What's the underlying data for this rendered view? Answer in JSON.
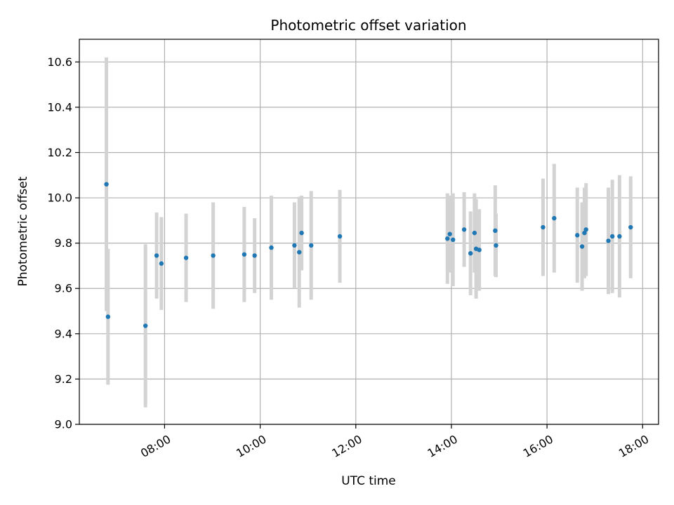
{
  "chart_data": {
    "type": "scatter",
    "title": "Photometric offset variation",
    "xlabel": "UTC time",
    "ylabel": "Photometric offset",
    "xlim": [
      "06:13",
      "18:20"
    ],
    "ylim": [
      9.0,
      10.7
    ],
    "x_ticks": [
      "08:00",
      "10:00",
      "12:00",
      "14:00",
      "16:00",
      "18:00"
    ],
    "y_ticks": [
      "9.0",
      "9.2",
      "9.4",
      "9.6",
      "9.8",
      "10.0",
      "10.2",
      "10.4",
      "10.6"
    ],
    "grid": true,
    "point_color": "#1f77b4",
    "errorbar_color": "#d3d3d3",
    "points": [
      {
        "time": "06:47",
        "y": 10.06,
        "err": 0.56
      },
      {
        "time": "06:49",
        "y": 9.475,
        "err": 0.3
      },
      {
        "time": "07:36",
        "y": 9.435,
        "err": 0.36
      },
      {
        "time": "07:50",
        "y": 9.745,
        "err": 0.19
      },
      {
        "time": "07:56",
        "y": 9.71,
        "err": 0.205
      },
      {
        "time": "08:27",
        "y": 9.735,
        "err": 0.195
      },
      {
        "time": "09:01",
        "y": 9.745,
        "err": 0.235
      },
      {
        "time": "09:40",
        "y": 9.75,
        "err": 0.21
      },
      {
        "time": "09:53",
        "y": 9.745,
        "err": 0.165
      },
      {
        "time": "10:14",
        "y": 9.78,
        "err": 0.23
      },
      {
        "time": "10:43",
        "y": 9.79,
        "err": 0.19
      },
      {
        "time": "10:49",
        "y": 9.76,
        "err": 0.245
      },
      {
        "time": "10:52",
        "y": 9.845,
        "err": 0.165
      },
      {
        "time": "11:04",
        "y": 9.79,
        "err": 0.24
      },
      {
        "time": "11:40",
        "y": 9.83,
        "err": 0.205
      },
      {
        "time": "13:55",
        "y": 9.82,
        "err": 0.2
      },
      {
        "time": "13:58",
        "y": 9.84,
        "err": 0.17
      },
      {
        "time": "14:02",
        "y": 9.815,
        "err": 0.205
      },
      {
        "time": "14:16",
        "y": 9.86,
        "err": 0.165
      },
      {
        "time": "14:24",
        "y": 9.755,
        "err": 0.185
      },
      {
        "time": "14:29",
        "y": 9.845,
        "err": 0.175
      },
      {
        "time": "14:31",
        "y": 9.775,
        "err": 0.22
      },
      {
        "time": "14:35",
        "y": 9.77,
        "err": 0.18
      },
      {
        "time": "14:55",
        "y": 9.855,
        "err": 0.2
      },
      {
        "time": "14:56",
        "y": 9.79,
        "err": 0.14
      },
      {
        "time": "15:55",
        "y": 9.87,
        "err": 0.215
      },
      {
        "time": "16:09",
        "y": 9.91,
        "err": 0.24
      },
      {
        "time": "16:38",
        "y": 9.835,
        "err": 0.21
      },
      {
        "time": "16:44",
        "y": 9.785,
        "err": 0.195
      },
      {
        "time": "16:47",
        "y": 9.845,
        "err": 0.2
      },
      {
        "time": "16:49",
        "y": 9.86,
        "err": 0.205
      },
      {
        "time": "17:17",
        "y": 9.81,
        "err": 0.235
      },
      {
        "time": "17:22",
        "y": 9.83,
        "err": 0.25
      },
      {
        "time": "17:31",
        "y": 9.83,
        "err": 0.27
      },
      {
        "time": "17:45",
        "y": 9.87,
        "err": 0.225
      }
    ]
  }
}
